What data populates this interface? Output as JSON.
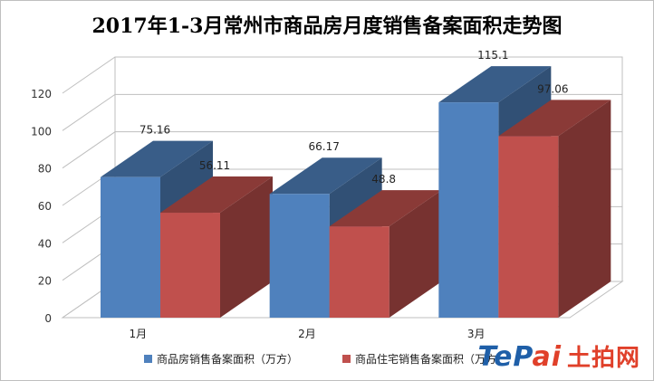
{
  "title": "2017年1-3月常州市商品房月度销售备案面积走势图",
  "chart_data": {
    "type": "bar",
    "title": "2017年1-3月常州市商品房月度销售备案面积走势图",
    "categories": [
      "1月",
      "2月",
      "3月"
    ],
    "series": [
      {
        "name": "商品房销售备案面积（万方）",
        "values": [
          75.16,
          66.17,
          115.1
        ],
        "labels": [
          "75.16",
          "66.17",
          "115.1"
        ],
        "color": "#4f81bd"
      },
      {
        "name": "商品住宅销售备案面积（万方）",
        "values": [
          56.11,
          48.8,
          97.06
        ],
        "labels": [
          "56.11",
          "48.8",
          "97.06"
        ],
        "color": "#c0504d"
      }
    ],
    "ylim": [
      0,
      120
    ],
    "yticks": [
      "0",
      "20",
      "40",
      "60",
      "80",
      "100",
      "120"
    ],
    "grid": true,
    "legend": "bottom",
    "style": "3d-clustered-column"
  },
  "watermark": {
    "latin_a": "TeP",
    "latin_b": "ai",
    "chinese": "土拍网"
  }
}
